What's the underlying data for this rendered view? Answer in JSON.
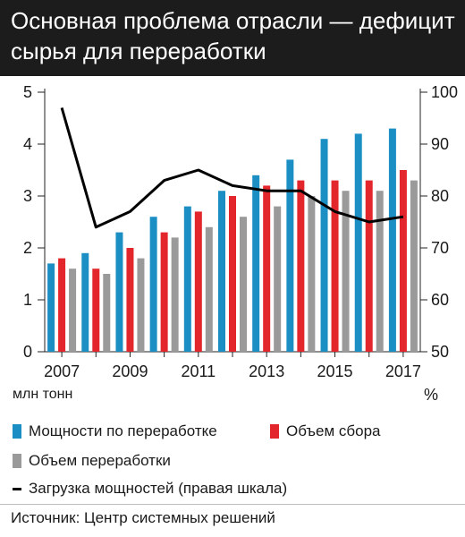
{
  "header": {
    "title": "Основная проблема отрасли — дефицит сырья для переработки"
  },
  "chart_data": {
    "type": "bar",
    "categories": [
      "2007",
      "2008",
      "2009",
      "2010",
      "2011",
      "2012",
      "2013",
      "2014",
      "2015",
      "2016",
      "2017"
    ],
    "x_tick_labels": [
      "2007",
      "2009",
      "2011",
      "2013",
      "2015",
      "2017"
    ],
    "y_left": {
      "label": "млн тонн",
      "ticks": [
        0,
        1,
        2,
        3,
        4,
        5
      ],
      "ylim": [
        0,
        5
      ]
    },
    "y_right": {
      "label": "%",
      "ticks": [
        50,
        60,
        70,
        80,
        90,
        100
      ],
      "ylim": [
        50,
        100
      ]
    },
    "series": [
      {
        "name": "Мощности по переработке",
        "color": "#1b8fc4",
        "axis": "left",
        "values": [
          1.7,
          1.9,
          2.3,
          2.6,
          2.8,
          3.1,
          3.4,
          3.7,
          4.1,
          4.2,
          4.3
        ]
      },
      {
        "name": "Объем сбора",
        "color": "#e3262c",
        "axis": "left",
        "values": [
          1.8,
          1.6,
          2.0,
          2.3,
          2.7,
          3.0,
          3.2,
          3.3,
          3.3,
          3.3,
          3.5
        ]
      },
      {
        "name": "Объем переработки",
        "color": "#9a9a9a",
        "axis": "left",
        "values": [
          1.6,
          1.5,
          1.8,
          2.2,
          2.4,
          2.6,
          2.8,
          3.0,
          3.1,
          3.1,
          3.3
        ]
      },
      {
        "name": "Загрузка мощностей (правая шкала)",
        "color": "#000000",
        "axis": "right",
        "type": "line",
        "values": [
          97,
          74,
          77,
          83,
          85,
          82,
          81,
          81,
          77,
          75,
          76
        ]
      }
    ],
    "grid": false,
    "legend_position": "bottom"
  },
  "legend": {
    "items": [
      {
        "label": "Мощности по переработке",
        "color": "#1b8fc4",
        "kind": "bar"
      },
      {
        "label": "Объем сбора",
        "color": "#e3262c",
        "kind": "bar"
      },
      {
        "label": "Объем переработки",
        "color": "#9a9a9a",
        "kind": "bar"
      },
      {
        "label": "Загрузка мощностей (правая шкала)",
        "color": "#000000",
        "kind": "line"
      }
    ]
  },
  "footer": {
    "source": "Источник: Центр системных решений"
  }
}
